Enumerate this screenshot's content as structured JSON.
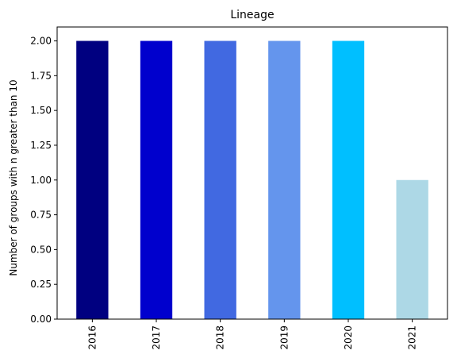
{
  "chart_data": {
    "type": "bar",
    "title": "Lineage",
    "xlabel": "",
    "ylabel": "Number of groups with n greater than 10",
    "categories": [
      "2016",
      "2017",
      "2018",
      "2019",
      "2020",
      "2021"
    ],
    "values": [
      2,
      2,
      2,
      2,
      2,
      1
    ],
    "colors": [
      "#000080",
      "#0000cd",
      "#4169e1",
      "#6495ed",
      "#00bfff",
      "#add8e6"
    ],
    "ylim": [
      0,
      2.1
    ],
    "yticks": [
      0.0,
      0.25,
      0.5,
      0.75,
      1.0,
      1.25,
      1.5,
      1.75,
      2.0
    ],
    "ytick_labels": [
      "0.00",
      "0.25",
      "0.50",
      "0.75",
      "1.00",
      "1.25",
      "1.50",
      "1.75",
      "2.00"
    ],
    "grid": false,
    "legend": "none"
  }
}
